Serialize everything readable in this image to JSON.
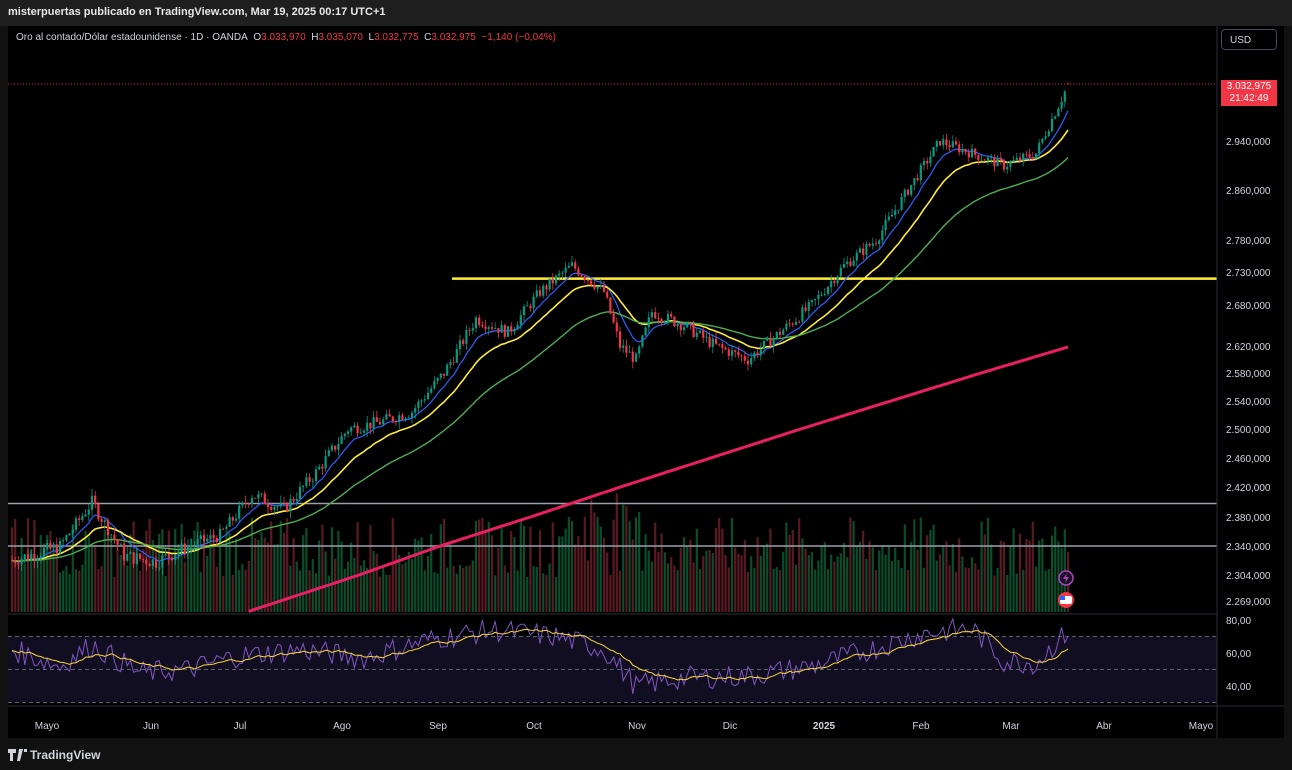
{
  "header": {
    "publisher_line": "misterpuertas publicado en TradingView.com, Mar 19, 2025 00:17 UTC+1"
  },
  "legend": {
    "symbol": "Oro al contado/Dólar estadounidense · 1D · OANDA",
    "o_label": "O",
    "o_value": "3.033,970",
    "h_label": "H",
    "h_value": "3.035,070",
    "l_label": "L",
    "l_value": "3.032,775",
    "c_label": "C",
    "c_value": "3.032,975",
    "change": "−1,140 (−0,04%)"
  },
  "currency_button": "USD",
  "last_price": {
    "value": "3.032,975",
    "countdown": "21:42:49"
  },
  "footer": {
    "brand": "TradingView"
  },
  "colors": {
    "up": "#089981",
    "down": "#f23645",
    "ema_fast": "#2962ff",
    "ema_mid": "#ffeb3b",
    "ema_slow": "#4caf50",
    "ema_long": "#e91e63",
    "rsi": "#7e57c2",
    "rsi_ma": "#fdd835",
    "hline_yellow": "#ffeb3b"
  },
  "icons": [
    "lightning-icon",
    "us-flag-icon",
    "tradingview-logo-icon"
  ],
  "chart_data": {
    "type": "candlestick",
    "y_ticks": [
      "2.940,000",
      "2.860,000",
      "2.780,000",
      "2.730,000",
      "2.680,000",
      "2.620,000",
      "2.580,000",
      "2.540,000",
      "2.500,000",
      "2.460,000",
      "2.420,000",
      "2.380,000",
      "2.340,000",
      "2.304,000",
      "2.269,000"
    ],
    "y_tick_values": [
      2940,
      2860,
      2780,
      2730,
      2680,
      2620,
      2580,
      2540,
      2500,
      2460,
      2420,
      2380,
      2340,
      2304,
      2269
    ],
    "x_labels": [
      "Mayo",
      "Jun",
      "Jul",
      "Ago",
      "Sep",
      "Oct",
      "Nov",
      "Dic",
      "2025",
      "Feb",
      "Mar",
      "Abr",
      "Mayo"
    ],
    "price_anchors": [
      [
        0,
        2322
      ],
      [
        15,
        2340
      ],
      [
        25,
        2400
      ],
      [
        35,
        2328
      ],
      [
        45,
        2320
      ],
      [
        55,
        2340
      ],
      [
        65,
        2355
      ],
      [
        75,
        2410
      ],
      [
        85,
        2390
      ],
      [
        95,
        2440
      ],
      [
        105,
        2500
      ],
      [
        115,
        2510
      ],
      [
        125,
        2525
      ],
      [
        135,
        2580
      ],
      [
        145,
        2660
      ],
      [
        155,
        2640
      ],
      [
        165,
        2700
      ],
      [
        175,
        2740
      ],
      [
        185,
        2700
      ],
      [
        190,
        2620
      ],
      [
        195,
        2600
      ],
      [
        200,
        2670
      ],
      [
        210,
        2650
      ],
      [
        220,
        2620
      ],
      [
        230,
        2600
      ],
      [
        240,
        2640
      ],
      [
        250,
        2680
      ],
      [
        260,
        2740
      ],
      [
        270,
        2780
      ],
      [
        280,
        2860
      ],
      [
        290,
        2940
      ],
      [
        300,
        2920
      ],
      [
        310,
        2900
      ],
      [
        320,
        2920
      ],
      [
        330,
        3032
      ]
    ],
    "horizontal_levels": [
      {
        "value": 2720,
        "color": "#ffeb3b"
      },
      {
        "value": 2398,
        "color": "#9aa0aa"
      },
      {
        "value": 2340,
        "color": "#9aa0aa"
      }
    ],
    "rsi_ticks": [
      "80,00",
      "60,00",
      "40,00"
    ],
    "rsi_tick_values": [
      80,
      60,
      40
    ],
    "rsi_bands": [
      70,
      50,
      30
    ],
    "rsi_anchors": [
      [
        0,
        62
      ],
      [
        15,
        52
      ],
      [
        25,
        65
      ],
      [
        40,
        48
      ],
      [
        55,
        50
      ],
      [
        70,
        58
      ],
      [
        90,
        62
      ],
      [
        110,
        57
      ],
      [
        130,
        68
      ],
      [
        150,
        74
      ],
      [
        170,
        70
      ],
      [
        185,
        62
      ],
      [
        195,
        40
      ],
      [
        210,
        45
      ],
      [
        230,
        46
      ],
      [
        250,
        52
      ],
      [
        270,
        63
      ],
      [
        285,
        72
      ],
      [
        300,
        75
      ],
      [
        310,
        55
      ],
      [
        320,
        54
      ],
      [
        330,
        73
      ]
    ]
  }
}
